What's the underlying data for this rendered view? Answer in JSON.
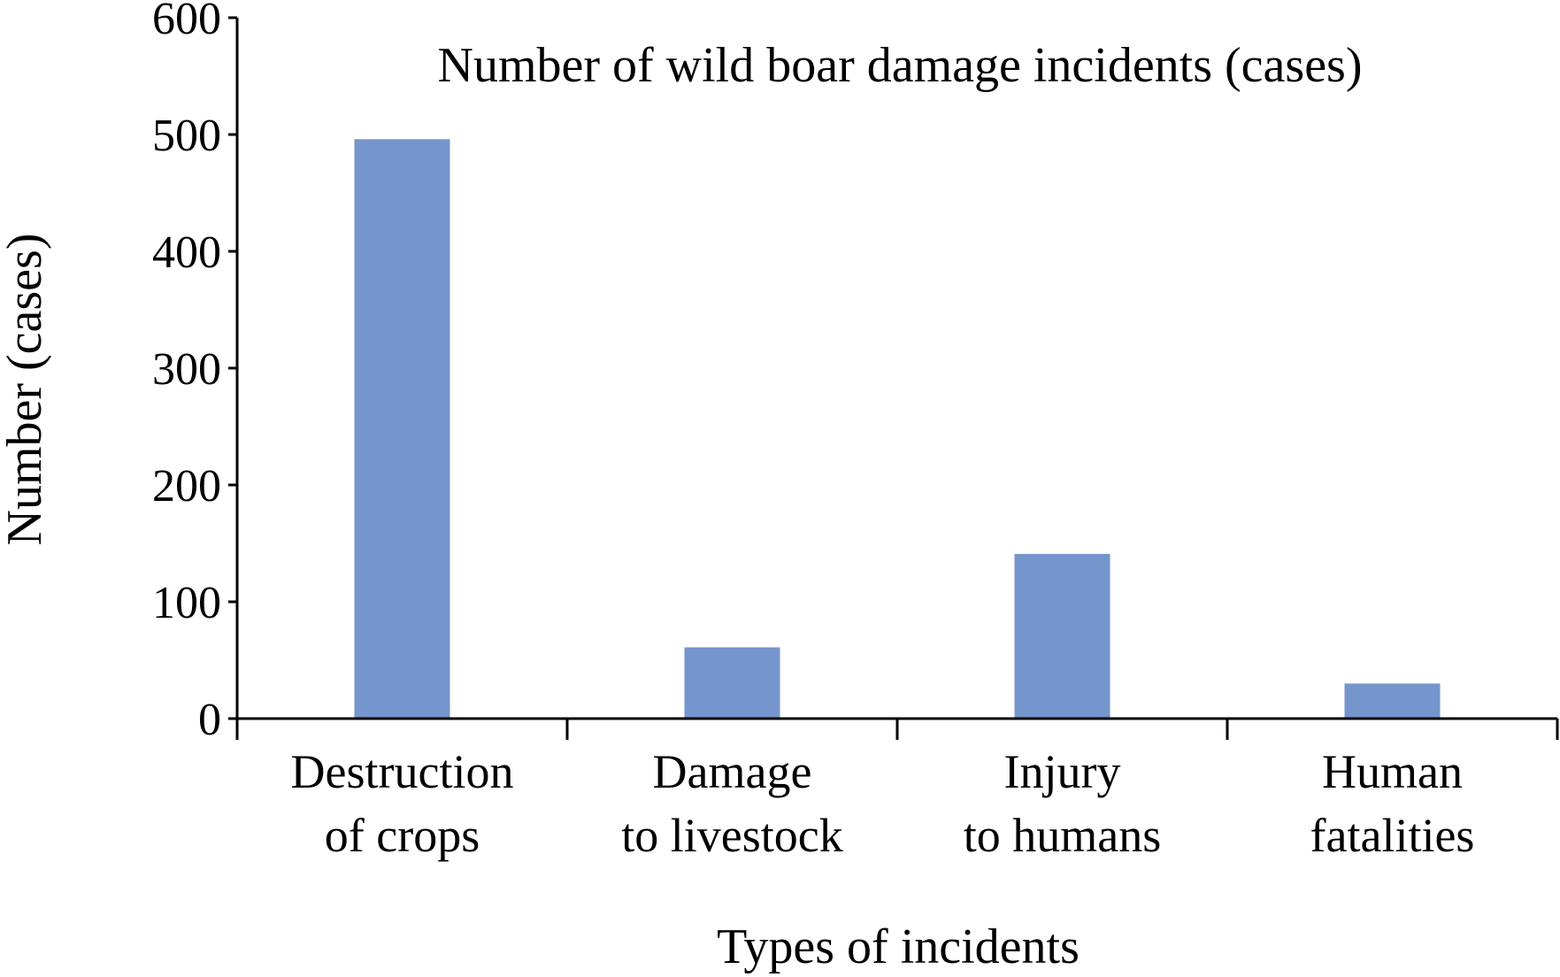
{
  "chart_data": {
    "type": "bar",
    "title": "Number of wild boar damage incidents (cases)",
    "xlabel": "Types of incidents",
    "ylabel": "Number (cases)",
    "categories": [
      [
        "Destruction",
        "of crops"
      ],
      [
        "Damage",
        "to livestock"
      ],
      [
        "Injury",
        "to humans"
      ],
      [
        "Human",
        "fatalities"
      ]
    ],
    "values": [
      496,
      61,
      141,
      30
    ],
    "ylim": [
      0,
      600
    ],
    "yticks": [
      0,
      100,
      200,
      300,
      400,
      500,
      600
    ],
    "bar_color": "#7595cd",
    "grid": false,
    "legend": "none"
  }
}
